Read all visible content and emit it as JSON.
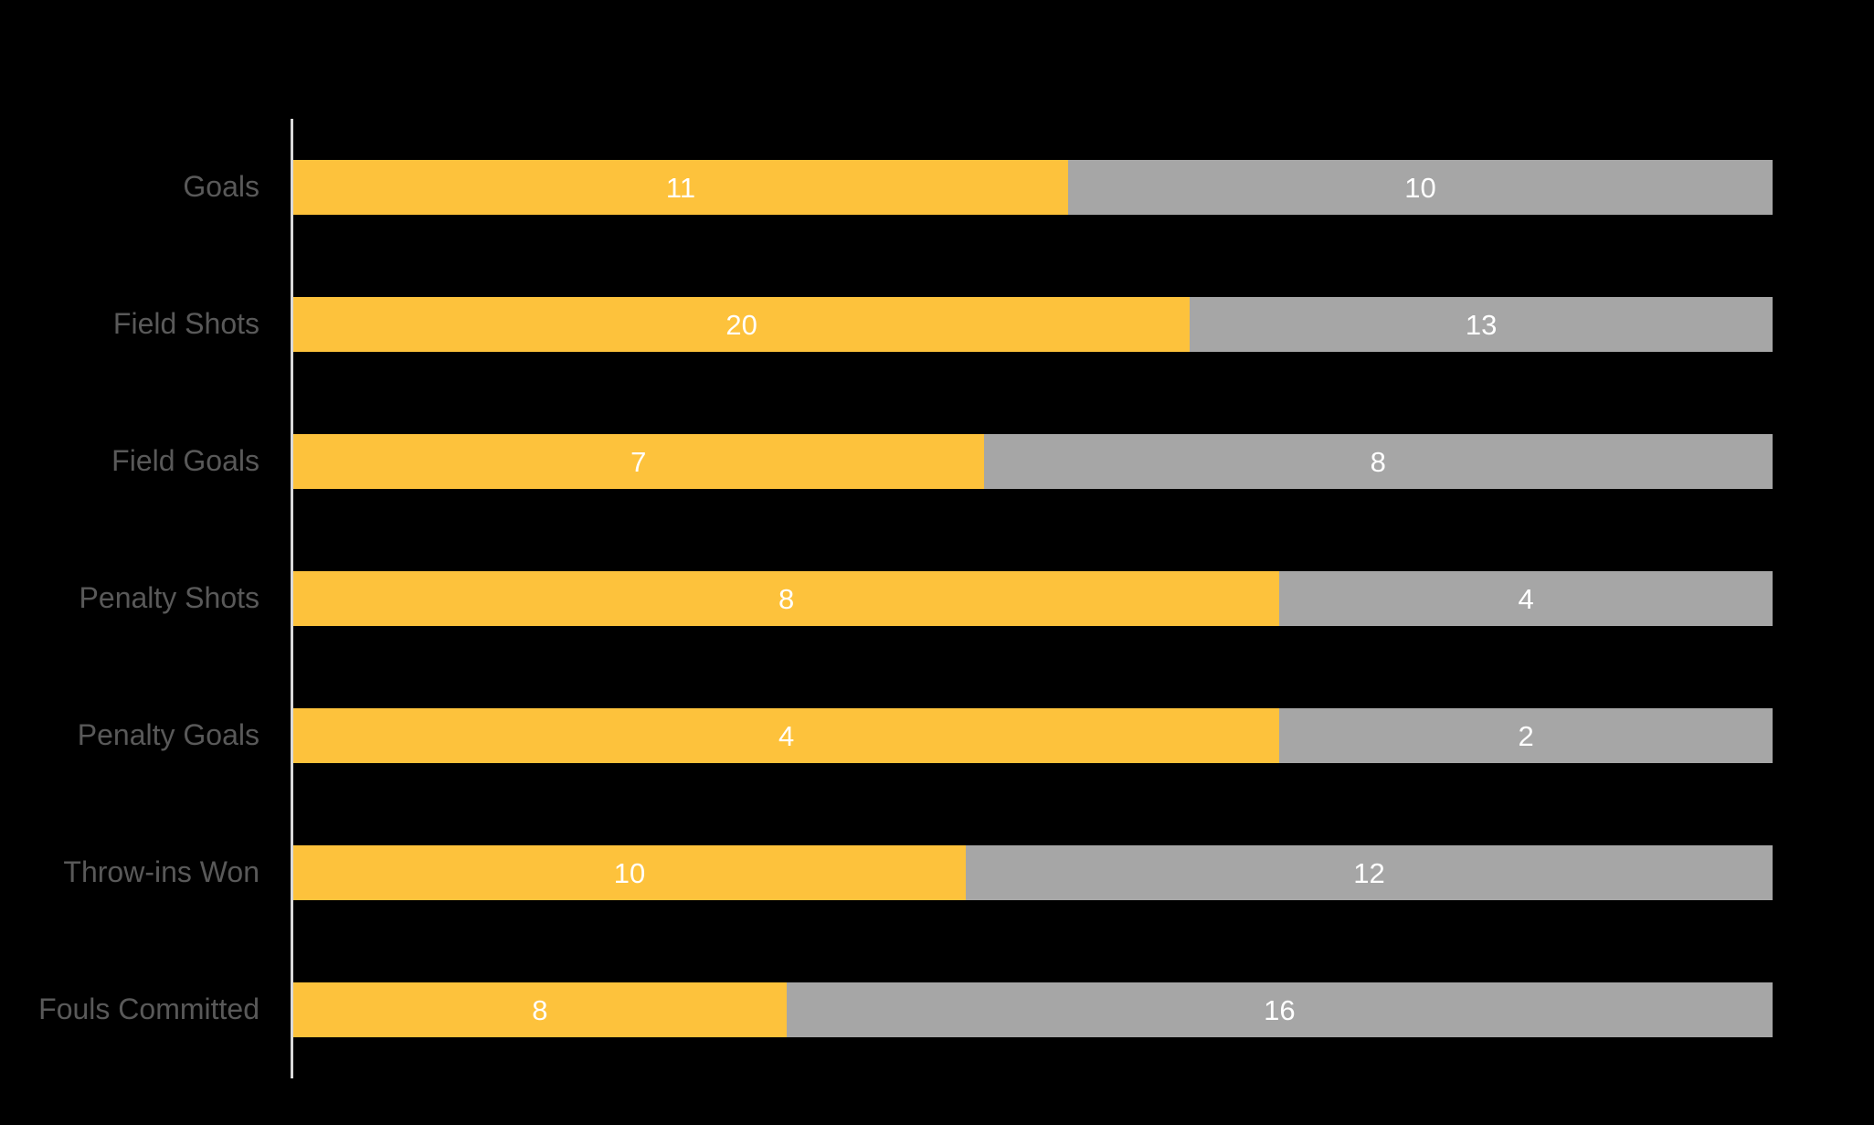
{
  "chart_data": {
    "type": "bar",
    "orientation": "horizontal",
    "stacked": "100%",
    "title": "",
    "legend": "none",
    "grid": "off",
    "background_color": "#000000",
    "axis_line_color": "#D9D9D9",
    "category_label_color": "#595959",
    "value_label_color": "#FFFFFF",
    "value_label_position": "inside-center",
    "categories": [
      "Goals",
      "Field Shots",
      "Field Goals",
      "Penalty Shots",
      "Penalty Goals",
      "Throw-ins Won",
      "Fouls Committed"
    ],
    "series": [
      {
        "name": "yellow-series",
        "color": "#FDC23C",
        "values": [
          11,
          20,
          7,
          8,
          4,
          10,
          8
        ]
      },
      {
        "name": "gray-series",
        "color": "#A6A6A6",
        "values": [
          10,
          13,
          8,
          4,
          2,
          12,
          16
        ]
      }
    ]
  }
}
